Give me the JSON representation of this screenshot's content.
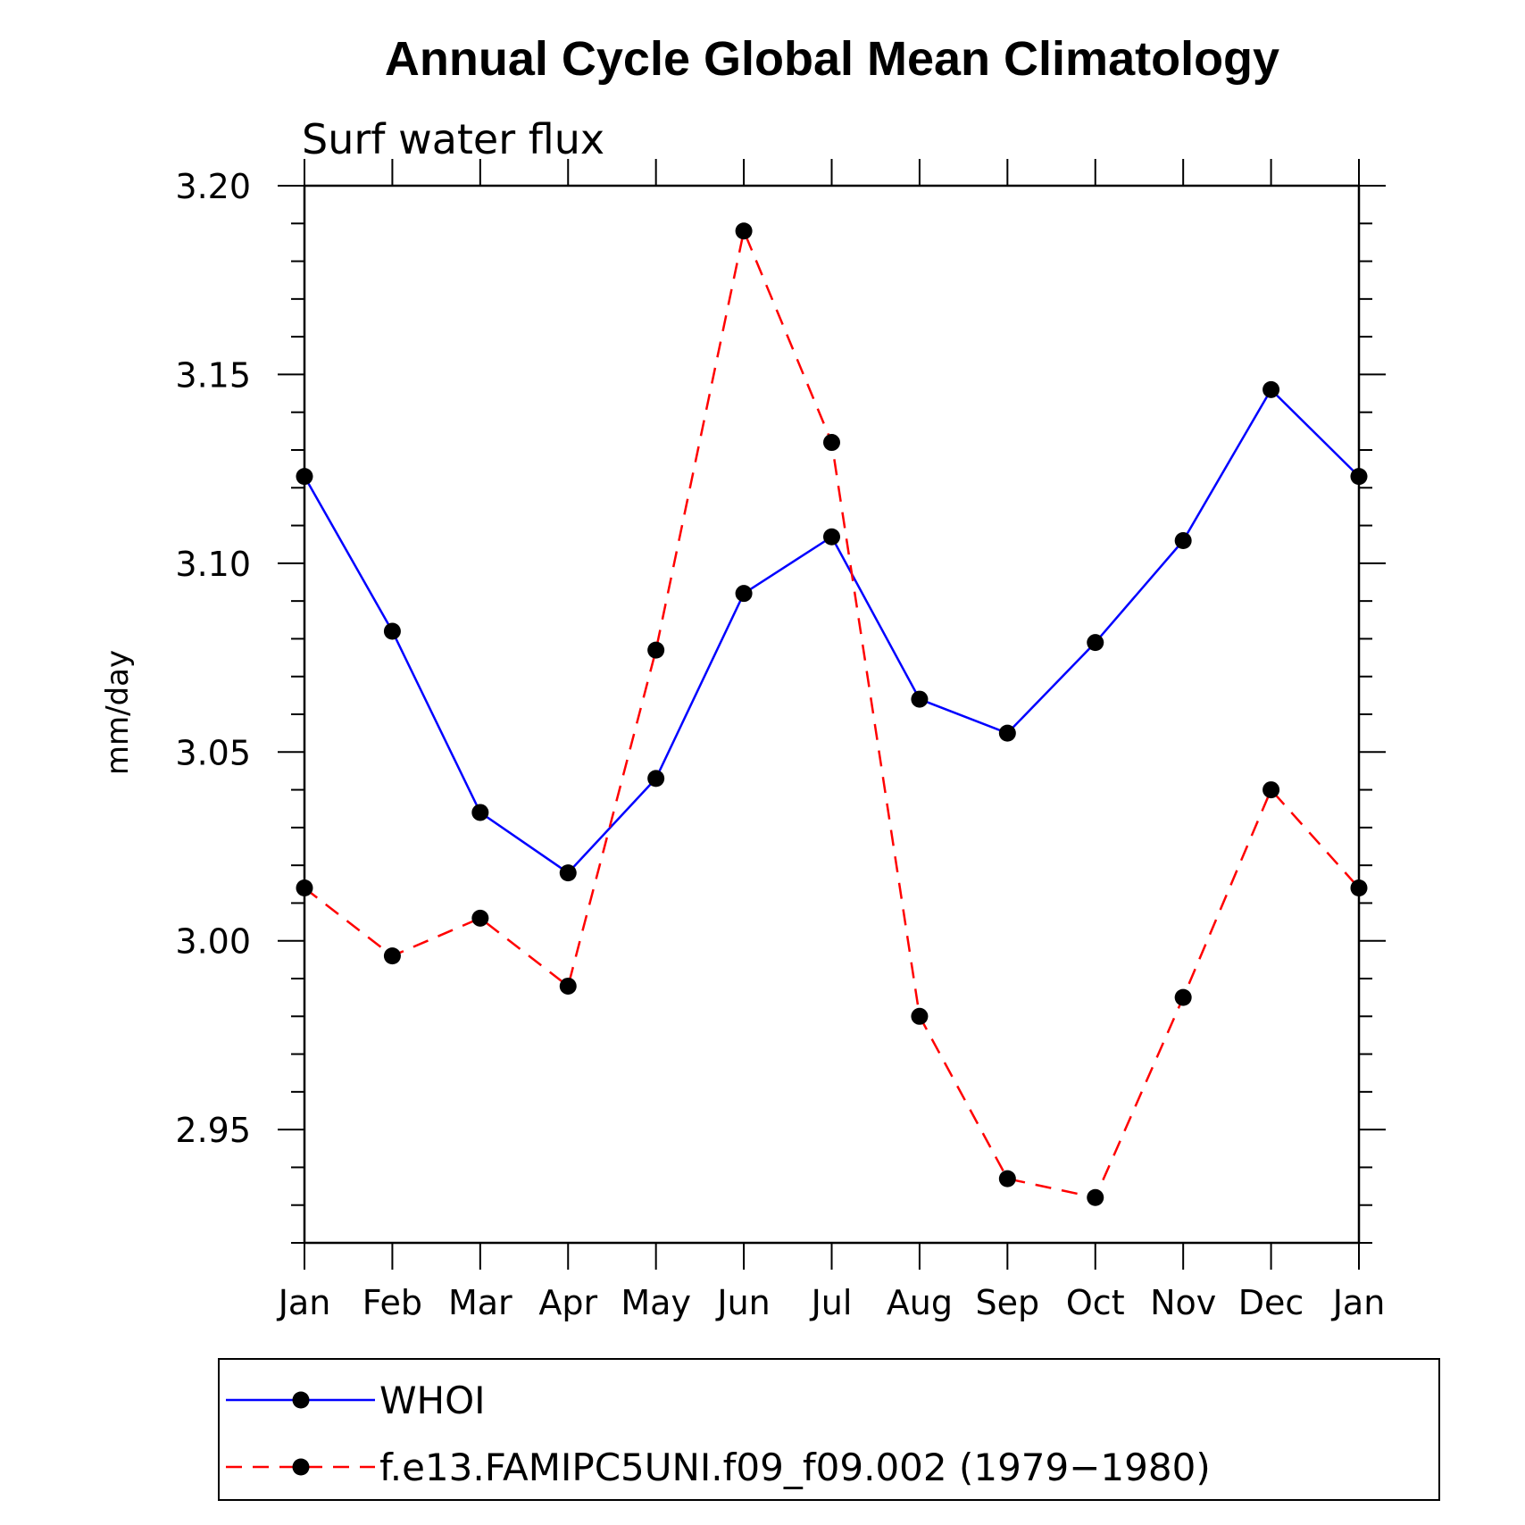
{
  "chart_data": {
    "type": "line",
    "title": "Annual Cycle Global Mean Climatology",
    "subtitle": "Surf water flux",
    "xlabel": "",
    "ylabel": "mm/day",
    "categories": [
      "Jan",
      "Feb",
      "Mar",
      "Apr",
      "May",
      "Jun",
      "Jul",
      "Aug",
      "Sep",
      "Oct",
      "Nov",
      "Dec",
      "Jan"
    ],
    "ylim": [
      2.92,
      3.2
    ],
    "yticks": [
      "3.20",
      "3.15",
      "3.10",
      "3.05",
      "3.00",
      "2.95"
    ],
    "ytick_values": [
      3.2,
      3.15,
      3.1,
      3.05,
      3.0,
      2.95
    ],
    "grid": false,
    "legend_placement": "bottom",
    "series": [
      {
        "name": "WHOI",
        "color": "#0000ff",
        "style": "solid",
        "values": [
          3.123,
          3.082,
          3.034,
          3.018,
          3.043,
          3.092,
          3.107,
          3.064,
          3.055,
          3.079,
          3.106,
          3.146,
          3.123
        ]
      },
      {
        "name": "f.e13.FAMIPC5UNI.f09_f09.002 (1979−1980)",
        "color": "#ff0000",
        "style": "dashed",
        "values": [
          3.014,
          2.996,
          3.006,
          2.988,
          3.077,
          3.188,
          3.132,
          2.98,
          2.937,
          2.932,
          2.985,
          3.04,
          3.014
        ]
      }
    ]
  }
}
